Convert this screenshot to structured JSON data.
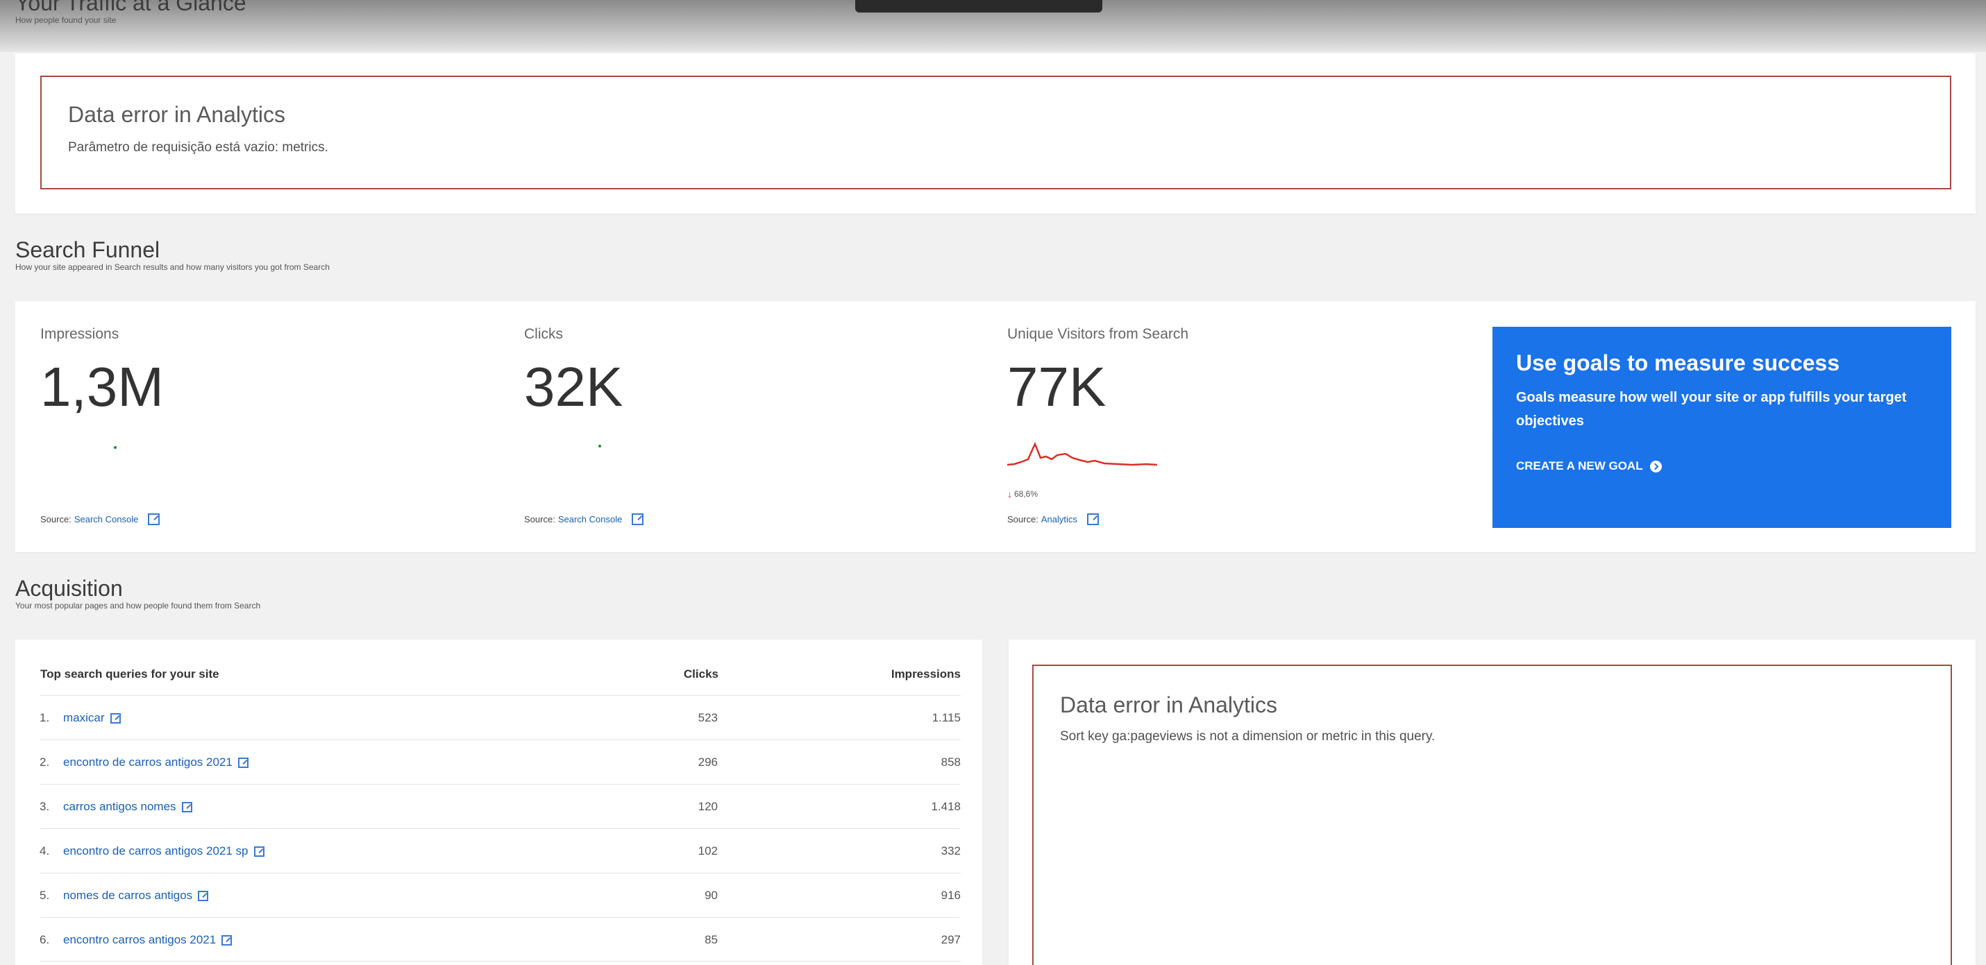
{
  "traffic": {
    "title": "Your Traffic at a Glance",
    "subtitle": "How people found your site",
    "error": {
      "title": "Data error in Analytics",
      "message": "Parâmetro de requisição está vazio: metrics."
    }
  },
  "search_funnel": {
    "title": "Search Funnel",
    "subtitle": "How your site appeared in Search results and how many visitors you got from Search",
    "metrics": [
      {
        "label": "Impressions",
        "value": "1,3M",
        "source_prefix": "Source:",
        "source_link": "Search Console"
      },
      {
        "label": "Clicks",
        "value": "32K",
        "source_prefix": "Source:",
        "source_link": "Search Console"
      },
      {
        "label": "Unique Visitors from Search",
        "value": "77K",
        "change": "68,6%",
        "source_prefix": "Source:",
        "source_link": "Analytics"
      }
    ],
    "goal_card": {
      "title": "Use goals to measure success",
      "description": "Goals measure how well your site or app fulfills your target objectives",
      "cta": "CREATE A NEW GOAL"
    }
  },
  "acquisition": {
    "title": "Acquisition",
    "subtitle": "Your most popular pages and how people found them from Search",
    "table": {
      "headers": {
        "query": "Top search queries for your site",
        "clicks": "Clicks",
        "impressions": "Impressions"
      },
      "rows": [
        {
          "index": "1.",
          "query": "maxicar",
          "clicks": "523",
          "impressions": "1.115"
        },
        {
          "index": "2.",
          "query": "encontro de carros antigos 2021",
          "clicks": "296",
          "impressions": "858"
        },
        {
          "index": "3.",
          "query": "carros antigos nomes",
          "clicks": "120",
          "impressions": "1.418"
        },
        {
          "index": "4.",
          "query": "encontro de carros antigos 2021 sp",
          "clicks": "102",
          "impressions": "332"
        },
        {
          "index": "5.",
          "query": "nomes de carros antigos",
          "clicks": "90",
          "impressions": "916"
        },
        {
          "index": "6.",
          "query": "encontro carros antigos 2021",
          "clicks": "85",
          "impressions": "297"
        }
      ]
    },
    "error": {
      "title": "Data error in Analytics",
      "message": "Sort key ga:pageviews is not a dimension or metric in this query."
    }
  },
  "colors": {
    "accent": "#1a73e8",
    "error_border": "#a8483f",
    "trend_down": "#d93025",
    "link": "#1a5fb4"
  }
}
